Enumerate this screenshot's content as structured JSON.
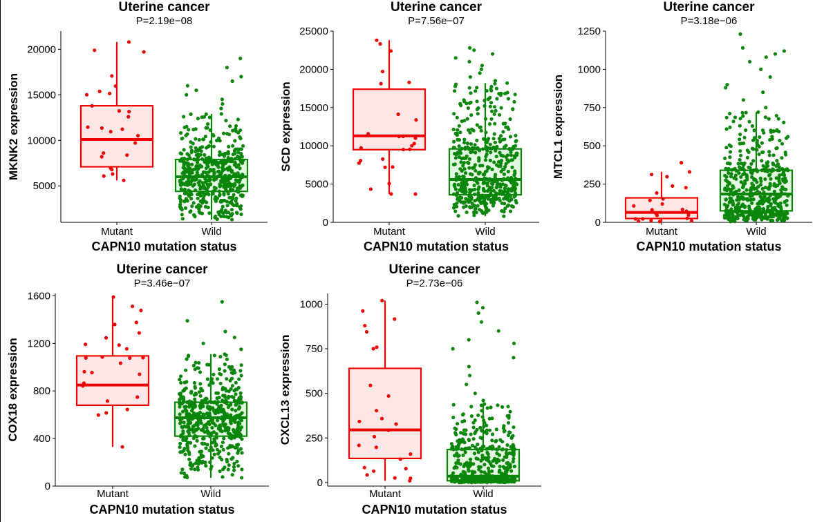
{
  "colors": {
    "mutant": "#ee0000",
    "mutant_fill": "#fde6e6",
    "wild": "#0a860a",
    "wild_fill": "#e3f8e0",
    "axis": "#000000"
  },
  "chart_data": [
    {
      "type": "box",
      "title": "Uterine cancer",
      "subtitle": "P=2.19e−08",
      "xlabel": "CAPN10 mutation status",
      "ylabel": "MKNK2 expression",
      "categories": [
        "Mutant",
        "Wild"
      ],
      "ylim": [
        1000,
        22000
      ],
      "yticks": [
        5000,
        10000,
        15000,
        20000
      ],
      "ytick_labels": [
        "5000",
        "10000",
        "15000",
        "20000"
      ],
      "series": [
        {
          "min": 5600,
          "q1": 7100,
          "median": 10100,
          "q3": 13800,
          "max": 20800,
          "n_points": 24,
          "outliers": []
        },
        {
          "min": 1300,
          "q1": 4400,
          "median": 6000,
          "q3": 7900,
          "max": 12900,
          "n_points": 520,
          "outliers": [
            13500,
            14000,
            14500,
            15000,
            15500,
            16000,
            16500,
            17000,
            18000,
            19000
          ]
        }
      ]
    },
    {
      "type": "box",
      "title": "Uterine cancer",
      "subtitle": "P=7.56e−07",
      "xlabel": "CAPN10 mutation status",
      "ylabel": "SCD expression",
      "categories": [
        "Mutant",
        "Wild"
      ],
      "ylim": [
        0,
        25000
      ],
      "yticks": [
        0,
        5000,
        10000,
        15000,
        20000,
        25000
      ],
      "ytick_labels": [
        "0",
        "5000",
        "10000",
        "15000",
        "20000",
        "25000"
      ],
      "series": [
        {
          "min": 3700,
          "q1": 9500,
          "median": 11300,
          "q3": 17400,
          "max": 23800,
          "n_points": 24,
          "outliers": []
        },
        {
          "min": 800,
          "q1": 3600,
          "median": 5600,
          "q3": 9600,
          "max": 18200,
          "n_points": 520,
          "outliers": [
            18500,
            19000,
            19500,
            20000,
            20500,
            21000,
            21500,
            22000,
            22500,
            22800
          ]
        }
      ]
    },
    {
      "type": "box",
      "title": "Uterine cancer",
      "subtitle": "P=3.18e−06",
      "xlabel": "CAPN10 mutation status",
      "ylabel": "MTCL1 expression",
      "categories": [
        "Mutant",
        "Wild"
      ],
      "ylim": [
        0,
        1250
      ],
      "yticks": [
        0,
        250,
        500,
        750,
        1000,
        1250
      ],
      "ytick_labels": [
        "0",
        "250",
        "500",
        "750",
        "1000",
        "1250"
      ],
      "series": [
        {
          "min": 5,
          "q1": 25,
          "median": 65,
          "q3": 160,
          "max": 330,
          "n_points": 22,
          "outliers": [
            390
          ]
        },
        {
          "min": 5,
          "q1": 75,
          "median": 185,
          "q3": 340,
          "max": 720,
          "n_points": 520,
          "outliers": [
            750,
            800,
            850,
            880,
            900,
            950,
            1000,
            1050,
            1080,
            1100,
            1120,
            1140,
            1230
          ]
        }
      ]
    },
    {
      "type": "box",
      "title": "Uterine cancer",
      "subtitle": "P=3.46e−07",
      "xlabel": "CAPN10 mutation status",
      "ylabel": "COX18 expression",
      "categories": [
        "Mutant",
        "Wild"
      ],
      "ylim": [
        0,
        1620
      ],
      "yticks": [
        0,
        400,
        800,
        1200,
        1600
      ],
      "ytick_labels": [
        "0",
        "400",
        "800",
        "1200",
        "1600"
      ],
      "series": [
        {
          "min": 330,
          "q1": 680,
          "median": 850,
          "q3": 1095,
          "max": 1590,
          "n_points": 24,
          "outliers": []
        },
        {
          "min": 70,
          "q1": 420,
          "median": 575,
          "q3": 705,
          "max": 1110,
          "n_points": 520,
          "outliers": [
            1150,
            1200,
            1250,
            1300,
            1390,
            1550
          ]
        }
      ]
    },
    {
      "type": "box",
      "title": "Uterine cancer",
      "subtitle": "P=2.73e−06",
      "xlabel": "CAPN10 mutation status",
      "ylabel": "CXCL13 expression",
      "categories": [
        "Mutant",
        "Wild"
      ],
      "ylim": [
        -20,
        1060
      ],
      "yticks": [
        0,
        250,
        500,
        750,
        1000
      ],
      "ytick_labels": [
        "0",
        "250",
        "500",
        "750",
        "1000"
      ],
      "series": [
        {
          "min": 10,
          "q1": 135,
          "median": 295,
          "q3": 640,
          "max": 1020,
          "n_points": 24,
          "outliers": []
        },
        {
          "min": 0,
          "q1": 10,
          "median": 35,
          "q3": 185,
          "max": 440,
          "n_points": 520,
          "outliers": [
            460,
            500,
            550,
            600,
            650,
            700,
            750,
            780,
            800,
            850,
            900,
            950,
            980,
            1010
          ]
        }
      ]
    }
  ]
}
